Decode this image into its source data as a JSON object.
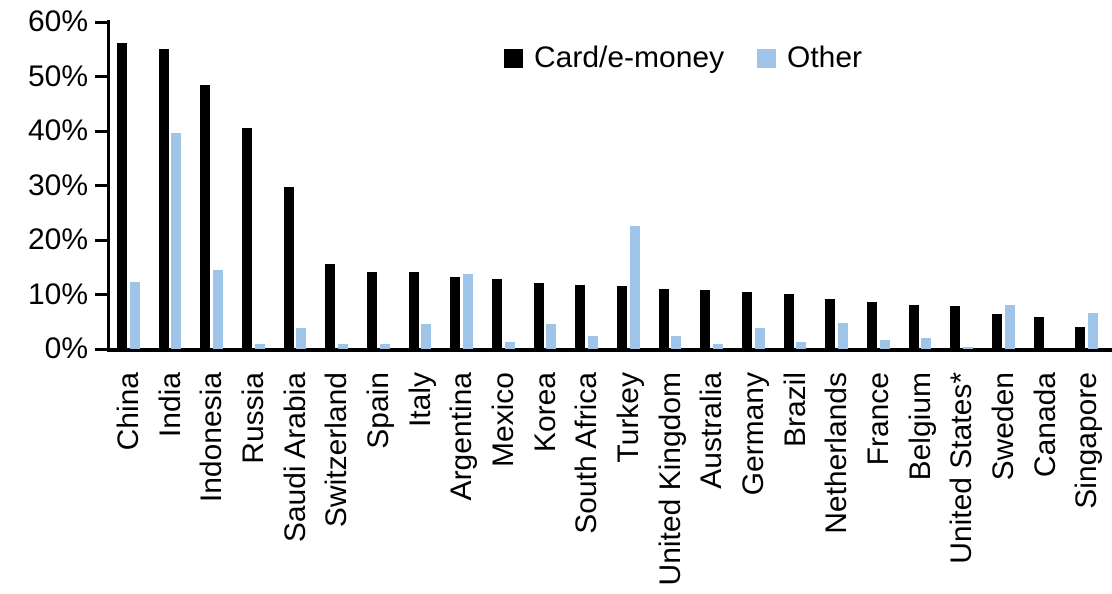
{
  "chart_data": {
    "type": "bar",
    "title": "",
    "xlabel": "",
    "ylabel": "",
    "ylim": [
      0,
      60
    ],
    "grid": false,
    "legend_position": "top-center",
    "yticks": [
      {
        "value": 60,
        "label": "60%"
      },
      {
        "value": 50,
        "label": "50%"
      },
      {
        "value": 40,
        "label": "40%"
      },
      {
        "value": 30,
        "label": "30%"
      },
      {
        "value": 20,
        "label": "20%"
      },
      {
        "value": 10,
        "label": "10%"
      },
      {
        "value": 0,
        "label": "0%"
      }
    ],
    "categories": [
      "China",
      "India",
      "Indonesia",
      "Russia",
      "Saudi Arabia",
      "Switzerland",
      "Spain",
      "Italy",
      "Argentina",
      "Mexico",
      "Korea",
      "South Africa",
      "Turkey",
      "United Kingdom",
      "Australia",
      "Germany",
      "Brazil",
      "Netherlands",
      "France",
      "Belgium",
      "United States*",
      "Sweden",
      "Canada",
      "Singapore"
    ],
    "series": [
      {
        "name": "Card/e-money",
        "color": "#000000",
        "values": [
          56.2,
          55.0,
          48.4,
          40.5,
          29.8,
          15.6,
          14.2,
          14.1,
          13.3,
          12.9,
          12.2,
          11.7,
          11.6,
          11.1,
          10.8,
          10.5,
          10.0,
          9.2,
          8.6,
          8.1,
          7.9,
          6.5,
          5.9,
          4.0
        ]
      },
      {
        "name": "Other",
        "color": "#A0C4E8",
        "values": [
          12.3,
          39.7,
          14.5,
          1.0,
          3.9,
          0.9,
          1.0,
          4.5,
          13.8,
          1.3,
          4.6,
          2.4,
          22.6,
          2.3,
          1.0,
          3.9,
          1.2,
          4.8,
          1.6,
          2.0,
          0.3,
          8.1,
          0.0,
          6.6
        ]
      }
    ]
  }
}
